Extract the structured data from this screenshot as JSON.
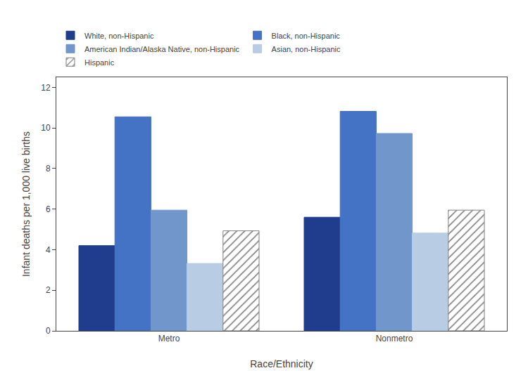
{
  "chart_data": {
    "type": "bar",
    "categories": [
      "Metro",
      "Nonmetro"
    ],
    "series": [
      {
        "name": "White, non-Hispanic",
        "color": "#1f3d8c",
        "values": [
          4.2,
          5.6
        ]
      },
      {
        "name": "Black, non-Hispanic",
        "color": "#4472c4",
        "values": [
          10.55,
          10.82
        ]
      },
      {
        "name": "American Indian/Alaska Native, non-Hispanic",
        "color": "#7096cc",
        "values": [
          5.95,
          9.73
        ]
      },
      {
        "name": "Asian, non-Hispanic",
        "color": "#b8cce4",
        "values": [
          3.32,
          4.82
        ]
      },
      {
        "name": "Hispanic",
        "color": "#ffffff",
        "values": [
          4.93,
          5.95
        ]
      }
    ],
    "xlabel": "Race/Ethnicity",
    "ylabel": "Infant deaths per 1,000 live births",
    "ylim": [
      0,
      12.5
    ],
    "yticks": [
      0,
      2,
      4,
      6,
      8,
      10,
      12
    ],
    "grid": false,
    "legend": "upper left"
  }
}
